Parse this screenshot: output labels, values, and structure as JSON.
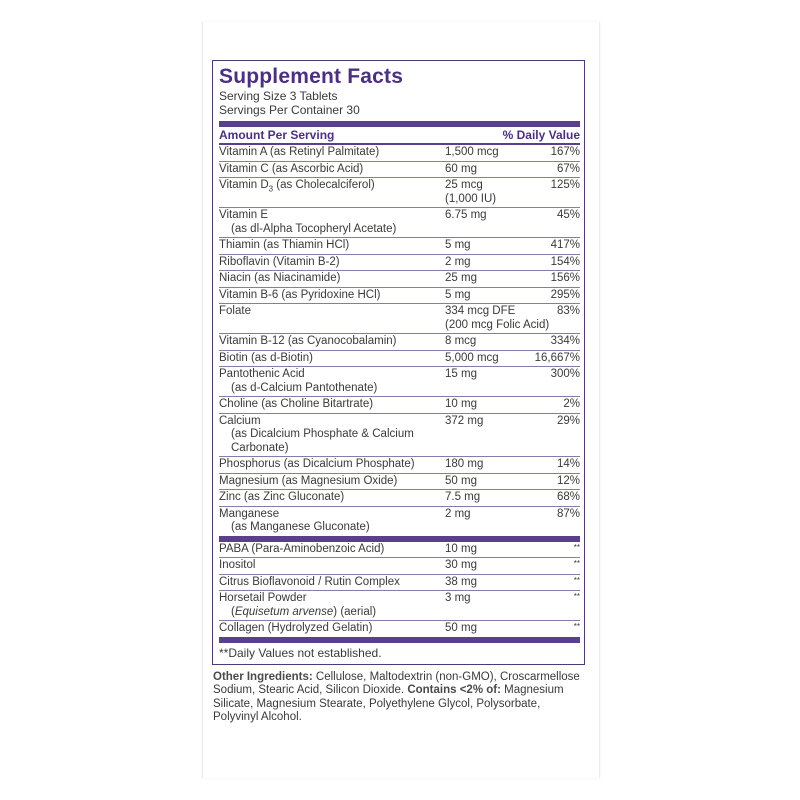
{
  "title": "Supplement Facts",
  "serving_size": "Serving Size 3 Tablets",
  "servings_per_container": "Servings Per Container 30",
  "header": {
    "amount": "Amount Per Serving",
    "dv": "% Daily Value"
  },
  "colors": {
    "accent": "#4b2f85"
  },
  "nutrients": [
    {
      "name": "Vitamin A (as Retinyl Palmitate)",
      "amount": "1,500 mcg",
      "dv": "167%"
    },
    {
      "name": "Vitamin C (as Ascorbic Acid)",
      "amount": "60 mg",
      "dv": "67%"
    },
    {
      "name": "Vitamin D",
      "name_sub": "3",
      "name_rest": " (as Cholecalciferol)",
      "amount": "25 mcg",
      "amount2": "(1,000 IU)",
      "dv": "125%"
    },
    {
      "name": "Vitamin E",
      "name2": "(as dl-Alpha Tocopheryl Acetate)",
      "amount": "6.75 mg",
      "dv": "45%"
    },
    {
      "name": "Thiamin (as Thiamin HCl)",
      "amount": "5 mg",
      "dv": "417%"
    },
    {
      "name": "Riboflavin (Vitamin B-2)",
      "amount": "2 mg",
      "dv": "154%"
    },
    {
      "name": "Niacin (as Niacinamide)",
      "amount": "25 mg",
      "dv": "156%"
    },
    {
      "name": "Vitamin B-6 (as Pyridoxine HCl)",
      "amount": "5 mg",
      "dv": "295%"
    },
    {
      "name": "Folate",
      "amount": "334 mcg DFE",
      "amount2": "(200 mcg Folic Acid)",
      "dv": "83%"
    },
    {
      "name": "Vitamin B-12 (as Cyanocobalamin)",
      "amount": "8 mcg",
      "dv": "334%"
    },
    {
      "name": "Biotin (as d-Biotin)",
      "amount": "5,000 mcg",
      "dv": "16,667%"
    },
    {
      "name": "Pantothenic Acid",
      "name2": "(as d-Calcium Pantothenate)",
      "amount": "15 mg",
      "dv": "300%"
    },
    {
      "name": "Choline (as Choline Bitartrate)",
      "amount": "10 mg",
      "dv": "2%"
    },
    {
      "name": "Calcium",
      "name2": "(as Dicalcium Phosphate & Calcium Carbonate)",
      "amount": "372 mg",
      "dv": "29%"
    },
    {
      "name": "Phosphorus (as Dicalcium Phosphate)",
      "amount": "180 mg",
      "dv": "14%"
    },
    {
      "name": "Magnesium (as Magnesium Oxide)",
      "amount": "50 mg",
      "dv": "12%"
    },
    {
      "name": "Zinc (as Zinc Gluconate)",
      "amount": "7.5 mg",
      "dv": "68%"
    },
    {
      "name": "Manganese",
      "name2": "(as Manganese Gluconate)",
      "amount": "2 mg",
      "dv": "87%"
    }
  ],
  "others": [
    {
      "name": "PABA (Para-Aminobenzoic Acid)",
      "amount": "10 mg",
      "dv": "**"
    },
    {
      "name": "Inositol",
      "amount": "30 mg",
      "dv": "**"
    },
    {
      "name": "Citrus Bioflavonoid / Rutin Complex",
      "amount": "38 mg",
      "dv": "**"
    },
    {
      "name": "Horsetail Powder",
      "name2_italic": "Equisetum arvense",
      "name2_rest": " (aerial)",
      "amount": "3 mg",
      "dv": "**"
    },
    {
      "name": "Collagen (Hydrolyzed Gelatin)",
      "amount": "50 mg",
      "dv": "**"
    }
  ],
  "footnote": "**Daily Values not established.",
  "other_ingredients": {
    "label": "Other Ingredients:",
    "text1": " Cellulose, Maltodextrin (non-GMO), Croscarmellose Sodium, Stearic Acid, Silicon Dioxide. ",
    "contains_label": "Contains <2% of:",
    "text2": " Magnesium Silicate, Magnesium Stearate, Polyethylene Glycol, Polysorbate, Polyvinyl Alcohol."
  }
}
